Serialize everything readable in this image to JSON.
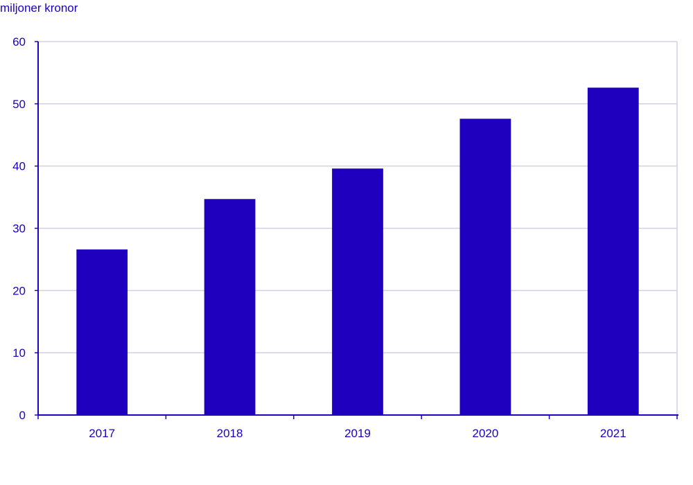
{
  "chart_data": {
    "type": "bar",
    "unit_label": "miljoner kronor",
    "categories": [
      "2017",
      "2018",
      "2019",
      "2020",
      "2021"
    ],
    "values": [
      26.6,
      34.7,
      39.6,
      47.6,
      52.6
    ],
    "ylim": [
      0,
      60
    ],
    "yticks": [
      "0",
      "10",
      "20",
      "30",
      "40",
      "50",
      "60"
    ],
    "grid": true,
    "colors": {
      "bar": "#1e00be",
      "axis": "#1e00be",
      "grid": "#cfcfe6",
      "text": "#1e00be"
    }
  }
}
